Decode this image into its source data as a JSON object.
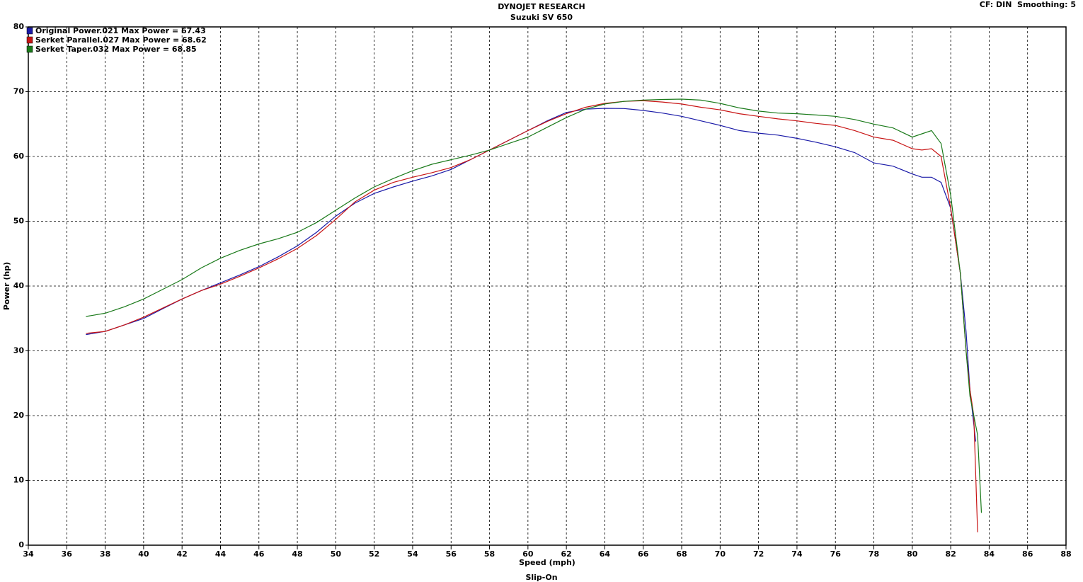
{
  "chart_data": {
    "type": "line",
    "title": "DYNOJET RESEARCH",
    "subtitle": "Suzuki SV 650",
    "corner_note": "CF: DIN  Smoothing: 5",
    "footer": "Slip-On",
    "x_label": "Speed (mph)",
    "y_label": "Power (hp)",
    "xlim": [
      34,
      88
    ],
    "ylim": [
      0,
      80
    ],
    "xticks": [
      34,
      36,
      38,
      40,
      42,
      44,
      46,
      48,
      50,
      52,
      54,
      56,
      58,
      60,
      62,
      64,
      66,
      68,
      70,
      72,
      74,
      76,
      78,
      80,
      82,
      84,
      86,
      88
    ],
    "yticks": [
      0,
      10,
      20,
      30,
      40,
      50,
      60,
      70,
      80
    ],
    "grid": true,
    "series": [
      {
        "name": "Original Power.021 Max Power = 67.43",
        "color": "#1a1aa8",
        "x": [
          37,
          38,
          39,
          40,
          41,
          42,
          43,
          44,
          45,
          46,
          47,
          48,
          49,
          50,
          51,
          52,
          53,
          54,
          55,
          56,
          57,
          58,
          59,
          60,
          61,
          62,
          63,
          64,
          65,
          66,
          67,
          68,
          69,
          70,
          71,
          72,
          73,
          74,
          75,
          76,
          77,
          78,
          79,
          80,
          80.5,
          81,
          81.5,
          82,
          82.5,
          82.8,
          83,
          83.3
        ],
        "values": [
          32.5,
          33,
          34,
          35,
          36.5,
          38,
          39.3,
          40.5,
          41.7,
          43,
          44.5,
          46.2,
          48.3,
          50.8,
          52.8,
          54.3,
          55.3,
          56.2,
          57,
          58,
          59.5,
          61,
          62.5,
          64,
          65.5,
          66.8,
          67.3,
          67.43,
          67.4,
          67.1,
          66.7,
          66.2,
          65.5,
          64.8,
          64,
          63.6,
          63.3,
          62.8,
          62.2,
          61.5,
          60.6,
          59,
          58.5,
          57.3,
          56.8,
          56.8,
          56,
          52,
          42,
          33,
          24,
          16
        ]
      },
      {
        "name": "Serket Parallel.027 Max Power = 68.62",
        "color": "#c81414",
        "x": [
          37,
          38,
          39,
          40,
          41,
          42,
          43,
          44,
          45,
          46,
          47,
          48,
          49,
          50,
          51,
          52,
          53,
          54,
          55,
          56,
          57,
          58,
          59,
          60,
          61,
          62,
          63,
          64,
          65,
          66,
          67,
          68,
          69,
          70,
          71,
          72,
          73,
          74,
          75,
          76,
          77,
          78,
          79,
          80,
          80.5,
          81,
          81.5,
          82,
          82.5,
          82.8,
          83,
          83.2,
          83.4
        ],
        "values": [
          32.7,
          33,
          34,
          35.2,
          36.6,
          38,
          39.3,
          40.3,
          41.5,
          42.8,
          44.2,
          45.8,
          47.8,
          50.3,
          53,
          54.8,
          56,
          56.8,
          57.5,
          58.3,
          59.5,
          61,
          62.5,
          64,
          65.4,
          66.6,
          67.6,
          68.2,
          68.5,
          68.6,
          68.4,
          68.1,
          67.6,
          67.2,
          66.6,
          66.2,
          65.8,
          65.5,
          65.1,
          64.8,
          64,
          63,
          62.5,
          61.2,
          61,
          61.2,
          60,
          52,
          42,
          30,
          24,
          20,
          2
        ]
      },
      {
        "name": "Serket Taper.032 Max Power = 68.85",
        "color": "#1a7a1a",
        "x": [
          37,
          38,
          39,
          40,
          41,
          42,
          43,
          44,
          45,
          46,
          47,
          48,
          49,
          50,
          51,
          52,
          53,
          54,
          55,
          56,
          57,
          58,
          59,
          60,
          61,
          62,
          63,
          64,
          65,
          66,
          67,
          68,
          69,
          70,
          71,
          72,
          73,
          74,
          75,
          76,
          77,
          78,
          79,
          80,
          80.5,
          81,
          81.5,
          82,
          82.5,
          82.8,
          83,
          83.4,
          83.6
        ],
        "values": [
          35.3,
          35.8,
          36.8,
          38,
          39.5,
          41,
          42.8,
          44.3,
          45.5,
          46.5,
          47.3,
          48.3,
          49.8,
          51.7,
          53.6,
          55.3,
          56.6,
          57.8,
          58.8,
          59.5,
          60.2,
          61,
          62,
          63,
          64.5,
          66,
          67.3,
          68.1,
          68.5,
          68.7,
          68.8,
          68.85,
          68.7,
          68.2,
          67.5,
          67,
          66.7,
          66.6,
          66.4,
          66.2,
          65.7,
          65,
          64.4,
          63,
          63.5,
          64,
          62,
          54,
          42,
          30,
          23,
          17,
          5
        ]
      }
    ]
  }
}
